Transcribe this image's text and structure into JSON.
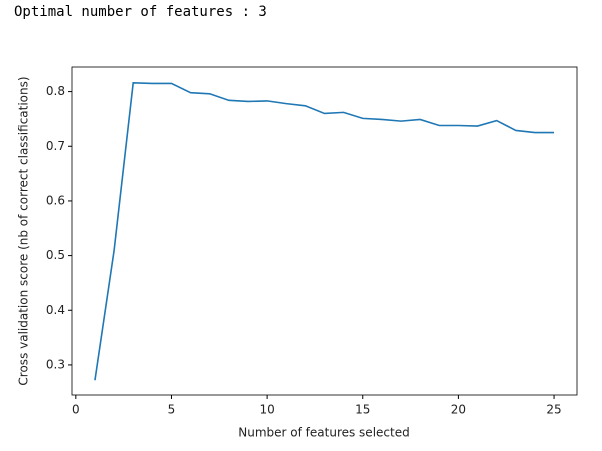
{
  "output_text": "Optimal number of features : 3",
  "chart_data": {
    "type": "line",
    "xlabel": "Number of features selected",
    "ylabel": "Cross validation score (nb of correct classifications)",
    "x": [
      1,
      2,
      3,
      4,
      5,
      6,
      7,
      8,
      9,
      10,
      11,
      12,
      13,
      14,
      15,
      16,
      17,
      18,
      19,
      20,
      21,
      22,
      23,
      24,
      25
    ],
    "series": [
      {
        "color": "#1f77b4",
        "values": [
          0.272,
          0.509,
          0.816,
          0.815,
          0.815,
          0.798,
          0.796,
          0.784,
          0.782,
          0.783,
          0.778,
          0.774,
          0.76,
          0.762,
          0.751,
          0.749,
          0.746,
          0.749,
          0.738,
          0.738,
          0.737,
          0.747,
          0.729,
          0.725,
          0.725
        ]
      }
    ],
    "xlim": [
      -0.2,
      26.2
    ],
    "ylim": [
      0.245,
      0.845
    ],
    "xticks": [
      0,
      5,
      10,
      15,
      20,
      25
    ],
    "yticks": [
      0.3,
      0.4,
      0.5,
      0.6,
      0.7,
      0.8
    ]
  }
}
